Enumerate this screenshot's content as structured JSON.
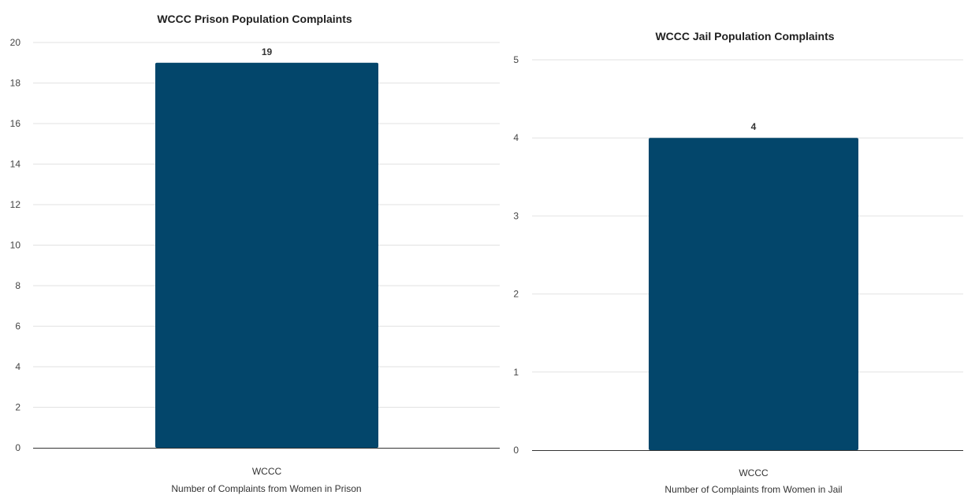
{
  "colors": {
    "bar": "#03466b",
    "grid": "#e2e2e2",
    "axis": "#333333"
  },
  "chart_data": [
    {
      "type": "bar",
      "title": "WCCC Prison Population Complaints",
      "categories": [
        "WCCC"
      ],
      "values": [
        19
      ],
      "data_labels": [
        "19"
      ],
      "xlabel": "Number of Complaints from Women in Prison",
      "ylabel": "",
      "ylim": [
        0,
        20
      ],
      "yticks": [
        0,
        2,
        4,
        6,
        8,
        10,
        12,
        14,
        16,
        18,
        20
      ],
      "grid": true,
      "legend": "none"
    },
    {
      "type": "bar",
      "title": "WCCC Jail Population Complaints",
      "categories": [
        "WCCC"
      ],
      "values": [
        4
      ],
      "data_labels": [
        "4"
      ],
      "xlabel": "Number of Complaints from Women in Jail",
      "ylabel": "",
      "ylim": [
        0,
        5
      ],
      "yticks": [
        0,
        1,
        2,
        3,
        4,
        5
      ],
      "grid": true,
      "legend": "none"
    }
  ]
}
